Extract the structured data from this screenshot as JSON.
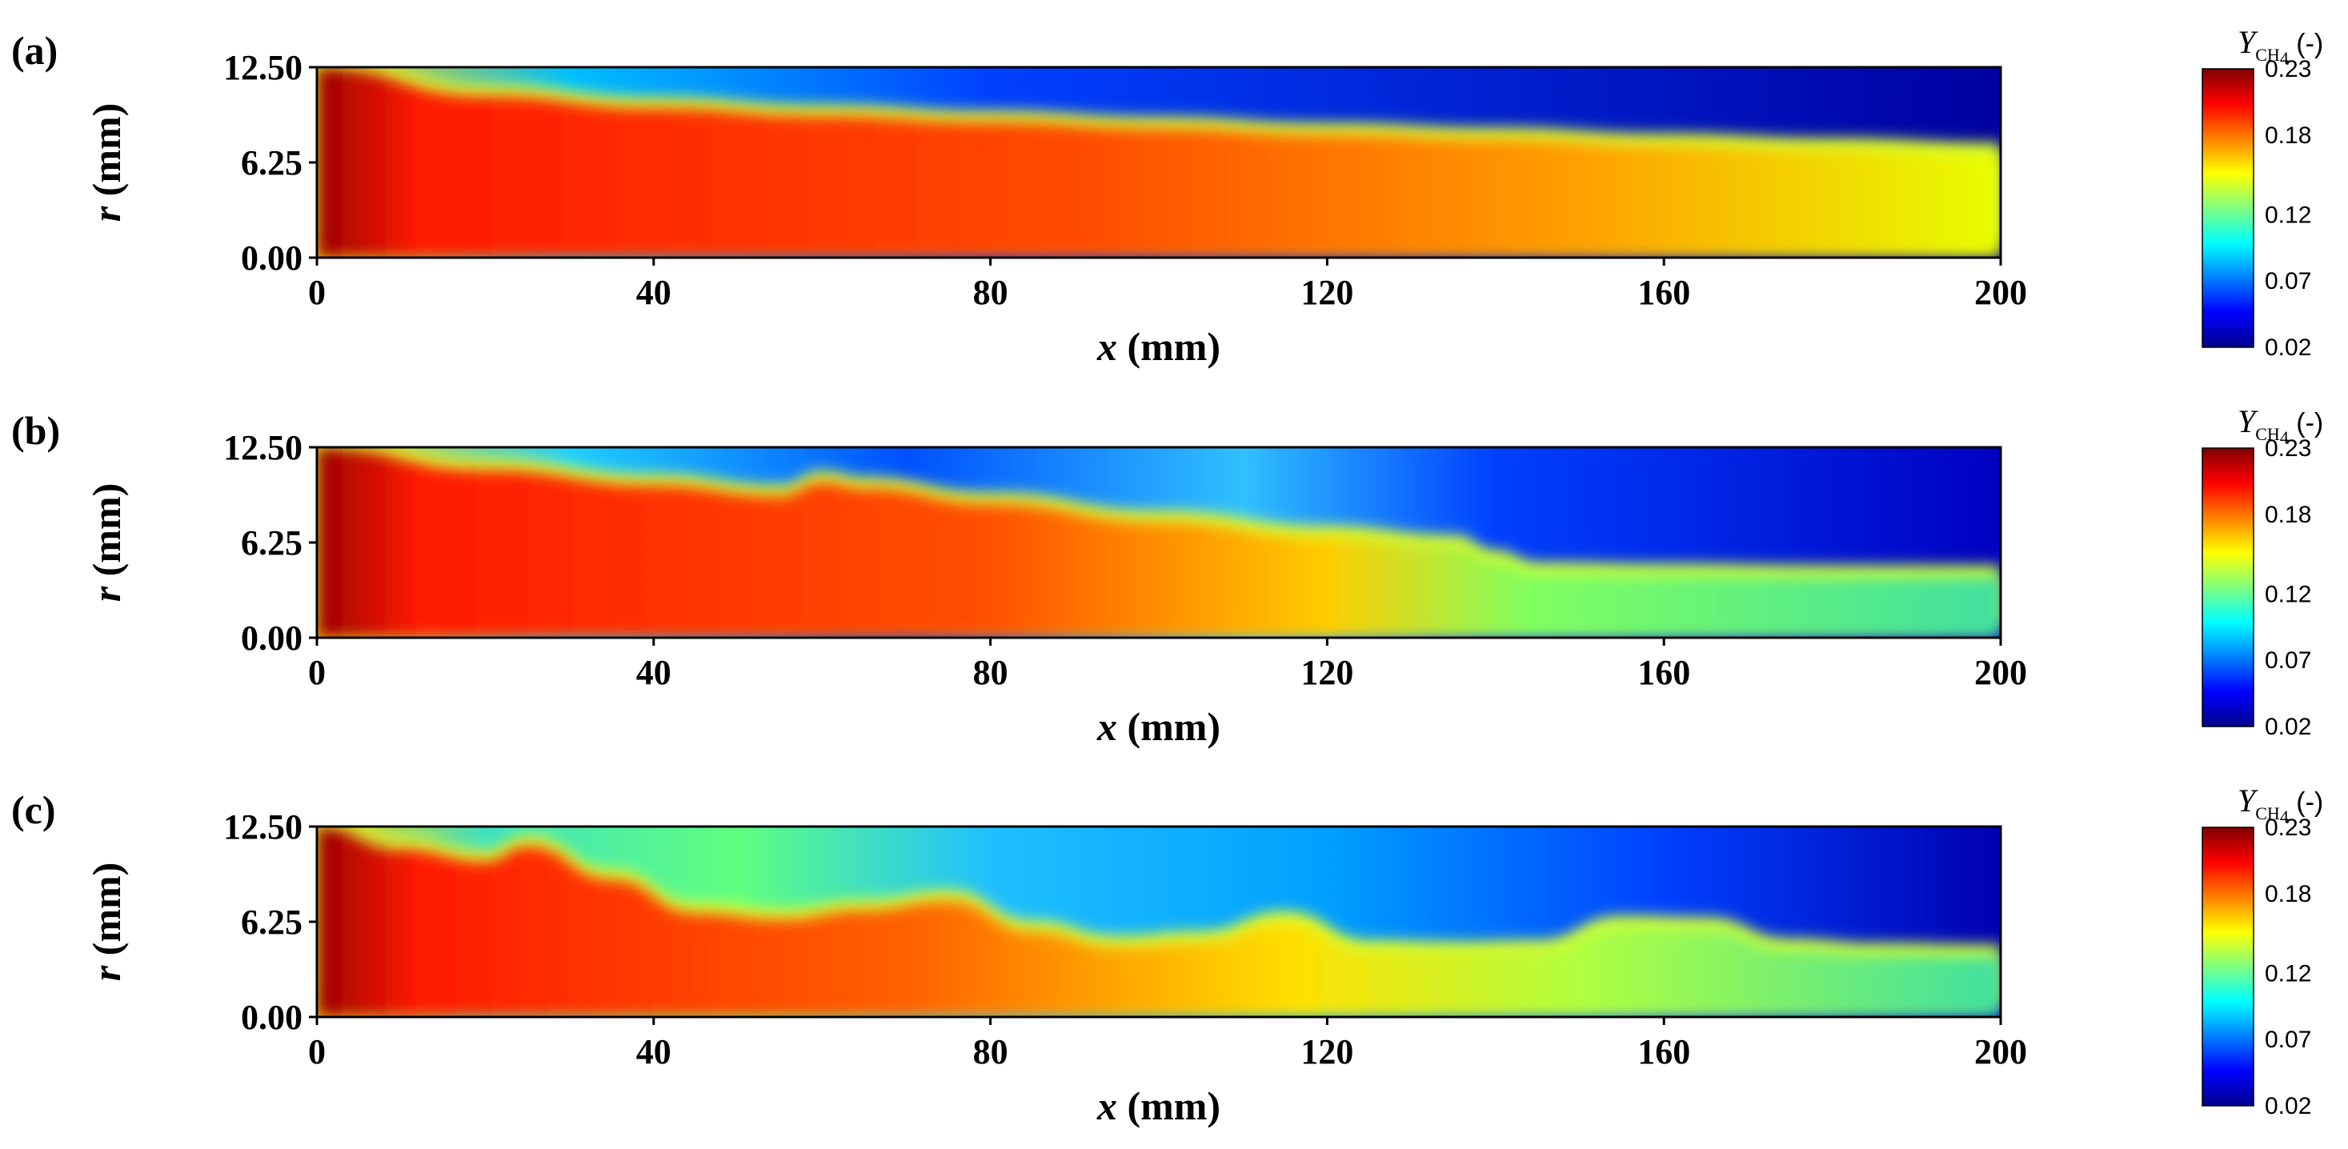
{
  "chart_data": [
    {
      "type": "heatmap",
      "panel_label": "(a)",
      "xlabel": {
        "var": "x",
        "unit": " (mm)"
      },
      "ylabel": {
        "var": "r",
        "unit": " (mm)"
      },
      "xlim": [
        0,
        200
      ],
      "ylim": [
        0,
        12.5
      ],
      "x_ticks": [
        "0",
        "40",
        "80",
        "120",
        "160",
        "200"
      ],
      "x_tick_values": [
        0,
        40,
        80,
        120,
        160,
        200
      ],
      "y_ticks": [
        "0.00",
        "6.25",
        "12.50"
      ],
      "y_tick_values": [
        0,
        6.25,
        12.5
      ],
      "field": "Y_CH4 mass fraction",
      "colorbar": {
        "title_var": "Y",
        "title_sub": "CH",
        "title_sub2": "4",
        "title_unit": " (-)",
        "ticks": [
          "0.23",
          "0.18",
          "0.12",
          "0.07",
          "0.02"
        ],
        "tick_values": [
          0.23,
          0.18,
          0.12,
          0.07,
          0.02
        ],
        "min": 0.02,
        "max": 0.23
      },
      "interface_profile_r_at_x": {
        "x": [
          0,
          20,
          40,
          60,
          80,
          100,
          120,
          140,
          160,
          180,
          200
        ],
        "r": [
          12.5,
          10.6,
          9.8,
          9.3,
          8.9,
          8.5,
          8.1,
          7.8,
          7.4,
          7.1,
          6.8
        ]
      }
    },
    {
      "type": "heatmap",
      "panel_label": "(b)",
      "xlabel": {
        "var": "x",
        "unit": " (mm)"
      },
      "ylabel": {
        "var": "r",
        "unit": " (mm)"
      },
      "xlim": [
        0,
        200
      ],
      "ylim": [
        0,
        12.5
      ],
      "x_ticks": [
        "0",
        "40",
        "80",
        "120",
        "160",
        "200"
      ],
      "x_tick_values": [
        0,
        40,
        80,
        120,
        160,
        200
      ],
      "y_ticks": [
        "0.00",
        "6.25",
        "12.50"
      ],
      "y_tick_values": [
        0,
        6.25,
        12.5
      ],
      "field": "Y_CH4 mass fraction",
      "colorbar": {
        "title_var": "Y",
        "title_sub": "CH",
        "title_sub2": "4",
        "title_unit": " (-)",
        "ticks": [
          "0.23",
          "0.18",
          "0.12",
          "0.07",
          "0.02"
        ],
        "tick_values": [
          0.23,
          0.18,
          0.12,
          0.07,
          0.02
        ],
        "min": 0.02,
        "max": 0.23
      },
      "interface_profile_r_at_x": {
        "x": [
          0,
          20,
          40,
          55,
          60,
          65,
          80,
          100,
          120,
          135,
          140,
          145,
          160,
          180,
          200
        ],
        "r": [
          12.5,
          11.0,
          10.0,
          9.3,
          10.2,
          9.8,
          8.8,
          7.6,
          6.6,
          6.0,
          5.0,
          4.2,
          4.1,
          4.0,
          4.0
        ]
      }
    },
    {
      "type": "heatmap",
      "panel_label": "(c)",
      "xlabel": {
        "var": "x",
        "unit": " (mm)"
      },
      "ylabel": {
        "var": "r",
        "unit": " (mm)"
      },
      "xlim": [
        0,
        200
      ],
      "ylim": [
        0,
        12.5
      ],
      "x_ticks": [
        "0",
        "40",
        "80",
        "120",
        "160",
        "200"
      ],
      "x_tick_values": [
        0,
        40,
        80,
        120,
        160,
        200
      ],
      "y_ticks": [
        "0.00",
        "6.25",
        "12.50"
      ],
      "y_tick_values": [
        0,
        6.25,
        12.5
      ],
      "field": "Y_CH4 mass fraction",
      "colorbar": {
        "title_var": "Y",
        "title_sub": "CH",
        "title_sub2": "4",
        "title_unit": " (-)",
        "ticks": [
          "0.23",
          "0.18",
          "0.12",
          "0.07",
          "0.02"
        ],
        "tick_values": [
          0.23,
          0.18,
          0.12,
          0.07,
          0.02
        ],
        "min": 0.02,
        "max": 0.23
      },
      "interface_profile_r_at_x": {
        "x": [
          0,
          10,
          20,
          25,
          35,
          45,
          55,
          65,
          75,
          85,
          95,
          105,
          115,
          125,
          135,
          145,
          155,
          165,
          175,
          185,
          200
        ],
        "r": [
          12.5,
          11.0,
          10.2,
          11.2,
          9.0,
          6.8,
          6.4,
          7.0,
          7.6,
          5.6,
          4.6,
          4.9,
          6.2,
          4.3,
          4.2,
          4.3,
          5.9,
          5.8,
          4.4,
          4.1,
          4.0
        ]
      }
    }
  ],
  "colormap": [
    "#00008f",
    "#0000ff",
    "#0080ff",
    "#00ffff",
    "#80ff80",
    "#ffff00",
    "#ff8000",
    "#ff0000",
    "#800000"
  ]
}
